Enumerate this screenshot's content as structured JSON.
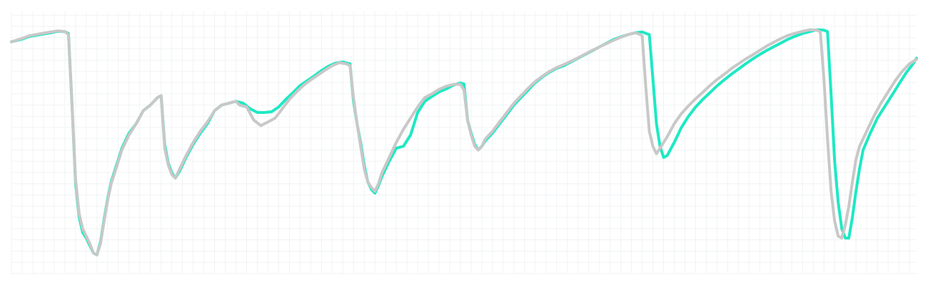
{
  "chart_data": {
    "type": "line",
    "title": "",
    "xlabel": "",
    "ylabel": "",
    "grid": true,
    "xlim": [
      0,
      254
    ],
    "ylim": [
      0,
      70
    ],
    "x_grid_step": 3,
    "y_grid_step": 3,
    "series": [
      {
        "color": "#1de9c4",
        "points": [
          [
            0,
            61.9
          ],
          [
            3,
            62.6
          ],
          [
            5,
            63.3
          ],
          [
            8,
            63.8
          ],
          [
            11,
            64.3
          ],
          [
            13,
            64.7
          ],
          [
            15,
            64.6
          ],
          [
            16,
            64.1
          ],
          [
            17,
            45.0
          ],
          [
            18,
            24.0
          ],
          [
            19,
            15.0
          ],
          [
            20,
            11.0
          ],
          [
            21,
            9.5
          ],
          [
            22,
            7.5
          ],
          [
            23,
            5.5
          ],
          [
            24,
            5.0
          ],
          [
            25,
            8.5
          ],
          [
            26,
            14.5
          ],
          [
            27,
            20.0
          ],
          [
            28,
            24.5
          ],
          [
            29,
            27.5
          ],
          [
            30,
            30.5
          ],
          [
            31,
            33.5
          ],
          [
            32,
            35.5
          ],
          [
            33,
            37.5
          ],
          [
            35,
            40.0
          ],
          [
            37,
            43.5
          ],
          [
            39,
            45.0
          ],
          [
            40,
            46.0
          ],
          [
            41,
            47.0
          ],
          [
            42,
            47.5
          ],
          [
            43,
            34.5
          ],
          [
            44,
            29.5
          ],
          [
            45,
            27.0
          ],
          [
            46,
            25.5
          ],
          [
            47,
            27.0
          ],
          [
            49,
            31.0
          ],
          [
            51,
            34.5
          ],
          [
            53,
            37.5
          ],
          [
            55,
            40.0
          ],
          [
            57,
            43.5
          ],
          [
            59,
            45.0
          ],
          [
            61,
            45.5
          ],
          [
            63,
            46.0
          ],
          [
            65,
            45.5
          ],
          [
            67,
            44.0
          ],
          [
            69,
            43.0
          ],
          [
            71,
            43.0
          ],
          [
            73,
            43.2
          ],
          [
            75,
            44.5
          ],
          [
            77,
            46.5
          ],
          [
            79,
            48.3
          ],
          [
            81,
            50.2
          ],
          [
            83,
            51.5
          ],
          [
            85,
            52.8
          ],
          [
            87,
            54.2
          ],
          [
            89,
            55.4
          ],
          [
            91,
            56.2
          ],
          [
            93,
            56.5
          ],
          [
            95,
            56.0
          ],
          [
            96,
            46.0
          ],
          [
            97,
            40.0
          ],
          [
            98,
            35.0
          ],
          [
            99,
            29.0
          ],
          [
            100,
            24.5
          ],
          [
            101,
            22.5
          ],
          [
            102,
            21.5
          ],
          [
            103,
            23.5
          ],
          [
            104,
            26.0
          ],
          [
            106,
            30.0
          ],
          [
            108,
            33.5
          ],
          [
            110,
            34.0
          ],
          [
            112,
            37.0
          ],
          [
            114,
            43.0
          ],
          [
            116,
            46.0
          ],
          [
            118,
            47.3
          ],
          [
            120,
            48.5
          ],
          [
            122,
            49.3
          ],
          [
            124,
            50.3
          ],
          [
            126,
            50.9
          ],
          [
            127,
            50.6
          ],
          [
            128,
            41.0
          ],
          [
            129,
            37.5
          ],
          [
            130,
            34.5
          ],
          [
            131,
            33.0
          ],
          [
            132,
            34.0
          ],
          [
            133,
            35.5
          ],
          [
            135,
            37.5
          ],
          [
            137,
            40.0
          ],
          [
            139,
            42.5
          ],
          [
            141,
            45.0
          ],
          [
            143,
            47.0
          ],
          [
            145,
            49.0
          ],
          [
            147,
            51.0
          ],
          [
            149,
            52.5
          ],
          [
            151,
            53.8
          ],
          [
            153,
            54.8
          ],
          [
            155,
            55.5
          ],
          [
            157,
            56.5
          ],
          [
            159,
            57.5
          ],
          [
            161,
            58.5
          ],
          [
            163,
            59.5
          ],
          [
            165,
            60.5
          ],
          [
            167,
            61.5
          ],
          [
            169,
            62.5
          ],
          [
            171,
            63.2
          ],
          [
            173,
            63.8
          ],
          [
            175,
            64.3
          ],
          [
            177,
            64.5
          ],
          [
            179,
            63.8
          ],
          [
            180,
            52.0
          ],
          [
            181,
            40.0
          ],
          [
            182,
            34.0
          ],
          [
            183,
            31.0
          ],
          [
            184,
            31.5
          ],
          [
            186,
            35.0
          ],
          [
            188,
            39.0
          ],
          [
            190,
            42.0
          ],
          [
            192,
            44.5
          ],
          [
            194,
            46.5
          ],
          [
            196,
            48.3
          ],
          [
            198,
            50.1
          ],
          [
            200,
            51.7
          ],
          [
            202,
            53.2
          ],
          [
            204,
            54.6
          ],
          [
            206,
            56.0
          ],
          [
            208,
            57.3
          ],
          [
            210,
            58.5
          ],
          [
            212,
            59.6
          ],
          [
            214,
            60.6
          ],
          [
            216,
            61.6
          ],
          [
            218,
            62.6
          ],
          [
            220,
            63.4
          ],
          [
            222,
            64.1
          ],
          [
            224,
            64.6
          ],
          [
            226,
            65.1
          ],
          [
            228,
            65.0
          ],
          [
            229,
            64.6
          ],
          [
            230,
            48.0
          ],
          [
            231,
            30.0
          ],
          [
            232,
            19.0
          ],
          [
            233,
            12.0
          ],
          [
            234,
            9.5
          ],
          [
            235,
            9.5
          ],
          [
            236,
            15.0
          ],
          [
            237,
            22.0
          ],
          [
            238,
            28.0
          ],
          [
            239,
            33.0
          ],
          [
            241,
            37.5
          ],
          [
            243,
            41.5
          ],
          [
            245,
            44.5
          ],
          [
            247,
            47.5
          ],
          [
            249,
            50.5
          ],
          [
            251,
            53.5
          ],
          [
            253,
            56.0
          ],
          [
            254,
            57.5
          ]
        ]
      },
      {
        "color": "#c8c8c8",
        "points": [
          [
            0,
            61.9
          ],
          [
            3,
            62.8
          ],
          [
            5,
            63.5
          ],
          [
            8,
            64.0
          ],
          [
            11,
            64.5
          ],
          [
            13,
            64.8
          ],
          [
            15,
            64.6
          ],
          [
            16,
            63.8
          ],
          [
            17,
            45.0
          ],
          [
            18,
            25.0
          ],
          [
            19,
            16.0
          ],
          [
            20,
            12.0
          ],
          [
            21,
            10.0
          ],
          [
            22,
            8.0
          ],
          [
            23,
            5.5
          ],
          [
            24,
            5.0
          ],
          [
            25,
            8.0
          ],
          [
            26,
            14.0
          ],
          [
            27,
            19.5
          ],
          [
            28,
            24.0
          ],
          [
            29,
            27.0
          ],
          [
            30,
            30.0
          ],
          [
            31,
            33.0
          ],
          [
            32,
            35.0
          ],
          [
            33,
            37.0
          ],
          [
            35,
            40.0
          ],
          [
            37,
            43.5
          ],
          [
            39,
            45.0
          ],
          [
            40,
            46.0
          ],
          [
            41,
            47.0
          ],
          [
            42,
            47.5
          ],
          [
            43,
            33.5
          ],
          [
            44,
            29.0
          ],
          [
            45,
            26.5
          ],
          [
            46,
            25.5
          ],
          [
            47,
            27.5
          ],
          [
            49,
            31.5
          ],
          [
            51,
            35.0
          ],
          [
            53,
            38.0
          ],
          [
            55,
            40.5
          ],
          [
            57,
            43.5
          ],
          [
            59,
            45.0
          ],
          [
            61,
            45.5
          ],
          [
            63,
            46.0
          ],
          [
            64,
            45.0
          ],
          [
            66,
            44.5
          ],
          [
            68,
            41.0
          ],
          [
            70,
            39.5
          ],
          [
            72,
            40.5
          ],
          [
            74,
            41.5
          ],
          [
            76,
            44.0
          ],
          [
            78,
            46.5
          ],
          [
            80,
            48.5
          ],
          [
            82,
            50.3
          ],
          [
            84,
            51.7
          ],
          [
            86,
            53.0
          ],
          [
            88,
            54.3
          ],
          [
            90,
            55.5
          ],
          [
            92,
            56.3
          ],
          [
            94,
            56.0
          ],
          [
            95,
            55.5
          ],
          [
            96,
            47.0
          ],
          [
            97,
            40.0
          ],
          [
            98,
            34.0
          ],
          [
            99,
            28.0
          ],
          [
            100,
            24.5
          ],
          [
            101,
            23.0
          ],
          [
            102,
            22.0
          ],
          [
            103,
            24.0
          ],
          [
            104,
            27.0
          ],
          [
            106,
            31.0
          ],
          [
            108,
            35.0
          ],
          [
            110,
            38.5
          ],
          [
            112,
            41.5
          ],
          [
            114,
            44.5
          ],
          [
            116,
            47.0
          ],
          [
            118,
            48.0
          ],
          [
            120,
            49.2
          ],
          [
            122,
            50.0
          ],
          [
            124,
            50.5
          ],
          [
            126,
            50.5
          ],
          [
            127,
            49.0
          ],
          [
            128,
            41.0
          ],
          [
            129,
            37.0
          ],
          [
            130,
            34.0
          ],
          [
            131,
            33.0
          ],
          [
            132,
            34.0
          ],
          [
            133,
            36.0
          ],
          [
            135,
            38.0
          ],
          [
            137,
            40.5
          ],
          [
            139,
            43.0
          ],
          [
            141,
            45.5
          ],
          [
            143,
            47.5
          ],
          [
            145,
            49.5
          ],
          [
            147,
            51.3
          ],
          [
            149,
            52.7
          ],
          [
            151,
            54.0
          ],
          [
            153,
            55.0
          ],
          [
            155,
            55.8
          ],
          [
            157,
            56.7
          ],
          [
            159,
            57.6
          ],
          [
            161,
            58.6
          ],
          [
            163,
            59.6
          ],
          [
            165,
            60.5
          ],
          [
            167,
            61.4
          ],
          [
            169,
            62.3
          ],
          [
            171,
            63.1
          ],
          [
            173,
            63.8
          ],
          [
            175,
            64.3
          ],
          [
            176,
            64.0
          ],
          [
            177,
            63.5
          ],
          [
            178,
            50.0
          ],
          [
            179,
            38.0
          ],
          [
            180,
            34.0
          ],
          [
            181,
            32.0
          ],
          [
            182,
            33.5
          ],
          [
            184,
            36.5
          ],
          [
            186,
            40.0
          ],
          [
            188,
            42.7
          ],
          [
            190,
            44.8
          ],
          [
            192,
            46.7
          ],
          [
            194,
            48.4
          ],
          [
            196,
            50.2
          ],
          [
            198,
            51.8
          ],
          [
            200,
            53.2
          ],
          [
            202,
            54.7
          ],
          [
            204,
            56.0
          ],
          [
            206,
            57.3
          ],
          [
            208,
            58.4
          ],
          [
            210,
            59.6
          ],
          [
            212,
            60.8
          ],
          [
            214,
            61.8
          ],
          [
            216,
            62.8
          ],
          [
            218,
            63.6
          ],
          [
            220,
            64.2
          ],
          [
            222,
            64.7
          ],
          [
            224,
            65.1
          ],
          [
            226,
            65.0
          ],
          [
            227,
            64.5
          ],
          [
            228,
            52.0
          ],
          [
            229,
            36.0
          ],
          [
            230,
            22.0
          ],
          [
            231,
            14.0
          ],
          [
            232,
            10.0
          ],
          [
            233,
            9.5
          ],
          [
            234,
            13.0
          ],
          [
            235,
            18.0
          ],
          [
            236,
            24.5
          ],
          [
            237,
            30.5
          ],
          [
            238,
            34.0
          ],
          [
            240,
            38.0
          ],
          [
            242,
            42.0
          ],
          [
            244,
            45.5
          ],
          [
            246,
            48.5
          ],
          [
            248,
            51.5
          ],
          [
            250,
            54.0
          ],
          [
            252,
            56.0
          ],
          [
            254,
            57.2
          ]
        ]
      }
    ]
  }
}
